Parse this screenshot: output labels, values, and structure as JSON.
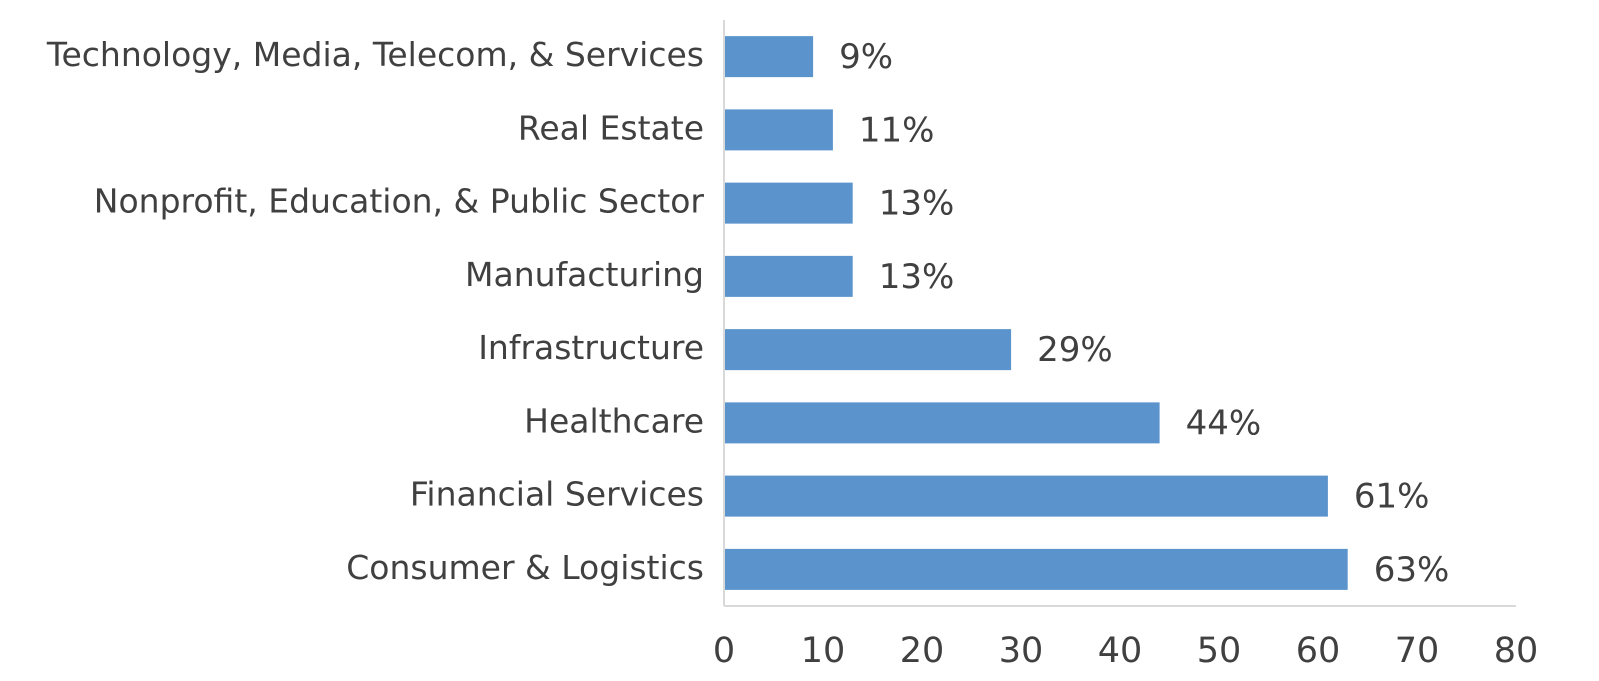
{
  "chart_data": {
    "type": "hbar",
    "categories": [
      "Technology, Media, Telecom, & Services",
      "Real Estate",
      "Nonprofit, Education, & Public Sector",
      "Manufacturing",
      "Infrastructure",
      "Healthcare",
      "Financial Services",
      "Consumer & Logistics"
    ],
    "values": [
      9,
      11,
      13,
      13,
      29,
      44,
      61,
      63
    ],
    "value_labels": [
      "9%",
      "11%",
      "13%",
      "13%",
      "29%",
      "44%",
      "61%",
      "63%"
    ],
    "color": "#5b93cc",
    "xlim": [
      0,
      80
    ],
    "xticks": [
      0,
      10,
      20,
      30,
      40,
      50,
      60,
      70,
      80
    ],
    "grid": false
  }
}
